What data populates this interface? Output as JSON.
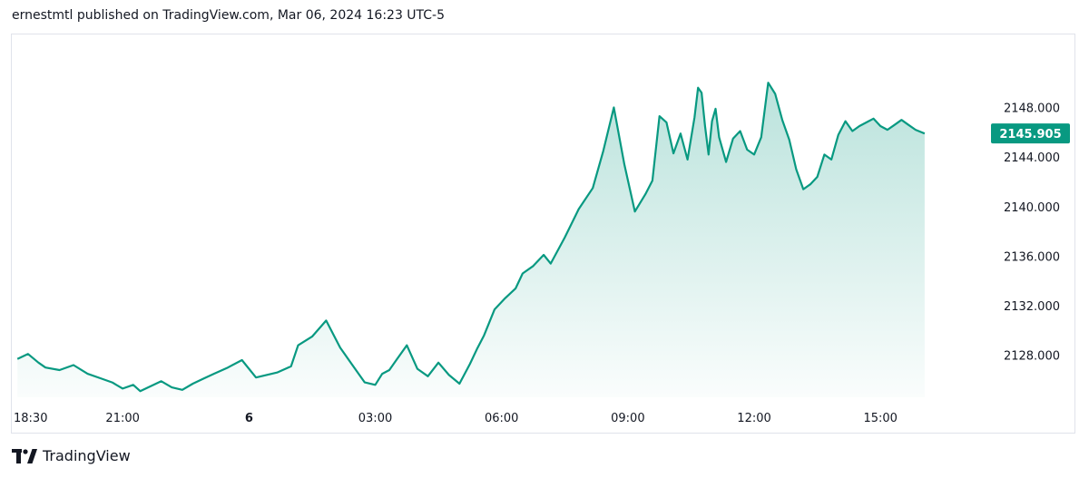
{
  "header": {
    "text": "ernestmtl published on TradingView.com, Mar 06, 2024 16:23 UTC-5"
  },
  "footer": {
    "brand": "TradingView",
    "logo_icon": "tradingview-logo-icon"
  },
  "colors": {
    "line": "#089981",
    "fill_top": "#089981",
    "badge_bg": "#089981",
    "badge_text": "#ffffff",
    "axis_text": "#131722",
    "border": "#e0e3eb"
  },
  "chart_data": {
    "type": "area",
    "last_price_label": "2145.905",
    "last_price": 2145.905,
    "ylim": [
      2124.6,
      2153.9
    ],
    "y_ticks": [
      2148,
      2144,
      2140,
      2136,
      2132,
      2128
    ],
    "y_tick_labels": [
      "2148.000",
      "2144.000",
      "2140.000",
      "2136.000",
      "2132.000",
      "2128.000"
    ],
    "x_ticks": [
      {
        "label": "18:30",
        "t": 0,
        "bold": false
      },
      {
        "label": "21:00",
        "t": 150,
        "bold": false
      },
      {
        "label": "6",
        "t": 330,
        "bold": true
      },
      {
        "label": "03:00",
        "t": 510,
        "bold": false
      },
      {
        "label": "06:00",
        "t": 690,
        "bold": false
      },
      {
        "label": "09:00",
        "t": 870,
        "bold": false
      },
      {
        "label": "12:00",
        "t": 1050,
        "bold": false
      },
      {
        "label": "15:00",
        "t": 1230,
        "bold": false
      }
    ],
    "x_unit": "minutes since 18:30 (Mar 05)",
    "series": [
      {
        "x": [
          0,
          15,
          30,
          40,
          60,
          80,
          100,
          120,
          135,
          150,
          165,
          175,
          190,
          205,
          220,
          235,
          250,
          265,
          280,
          300,
          320,
          340,
          355,
          370,
          390,
          400,
          420,
          440,
          460,
          480,
          495,
          510,
          520,
          530,
          540,
          555,
          570,
          585,
          600,
          615,
          630,
          645,
          655,
          665,
          680,
          695,
          710,
          720,
          735,
          750,
          760,
          780,
          800,
          820,
          835,
          850,
          865,
          880,
          895,
          905,
          915,
          925,
          935,
          945,
          955,
          965,
          970,
          975,
          980,
          985,
          990,
          995,
          1000,
          1010,
          1020,
          1030,
          1040,
          1050,
          1060,
          1070,
          1080,
          1090,
          1100,
          1110,
          1120,
          1130,
          1140,
          1150,
          1160,
          1170,
          1180,
          1190,
          1200,
          1210,
          1220,
          1230,
          1240,
          1250,
          1260,
          1270,
          1280,
          1293
        ],
        "y": [
          2127.7,
          2128.1,
          2127.4,
          2127.0,
          2126.8,
          2127.2,
          2126.5,
          2126.1,
          2125.8,
          2125.3,
          2125.6,
          2125.1,
          2125.5,
          2125.9,
          2125.4,
          2125.2,
          2125.7,
          2126.1,
          2126.5,
          2127.0,
          2127.6,
          2126.2,
          2126.4,
          2126.6,
          2127.1,
          2128.8,
          2129.5,
          2130.8,
          2128.6,
          2127.0,
          2125.8,
          2125.6,
          2126.5,
          2126.8,
          2127.6,
          2128.8,
          2126.9,
          2126.3,
          2127.4,
          2126.4,
          2125.7,
          2127.3,
          2128.5,
          2129.6,
          2131.7,
          2132.6,
          2133.4,
          2134.6,
          2135.2,
          2136.1,
          2135.4,
          2137.5,
          2139.8,
          2141.5,
          2144.5,
          2148.0,
          2143.4,
          2139.6,
          2141.0,
          2142.1,
          2147.3,
          2146.8,
          2144.3,
          2145.9,
          2143.8,
          2147.2,
          2149.6,
          2149.2,
          2146.5,
          2144.2,
          2146.9,
          2147.9,
          2145.6,
          2143.6,
          2145.5,
          2146.1,
          2144.6,
          2144.2,
          2145.6,
          2150.0,
          2149.1,
          2147.0,
          2145.4,
          2143.0,
          2141.4,
          2141.8,
          2142.4,
          2144.2,
          2143.8,
          2145.8,
          2146.9,
          2146.1,
          2146.5,
          2146.8,
          2147.1,
          2146.5,
          2146.2,
          2146.6,
          2147.0,
          2146.6,
          2146.2,
          2145.9
        ]
      }
    ],
    "grid": false,
    "legend": "none"
  }
}
